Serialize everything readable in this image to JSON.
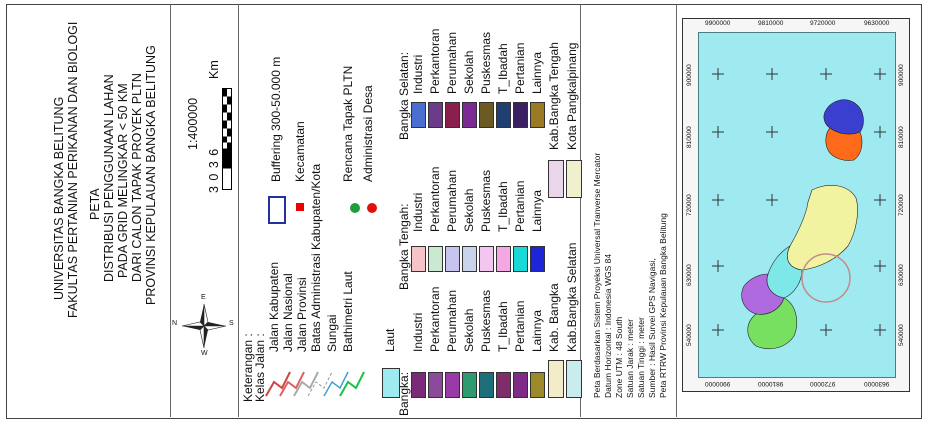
{
  "title_block": {
    "institution": [
      "UNIVERSITAS BANGKA BELITUNG",
      "FAKULTAS PERTANIAN PERIKANAN DAN BIOLOGI"
    ],
    "map_title": [
      "PETA",
      "DISTRIBUSI PENGGUNAAN LAHAN",
      "PADA  GRID MELINGKAR < 50 KM",
      "DARI CALON TAPAK PROYEK PLTN",
      "PROVINSI KEPULAUAN BANGKA BELITUNG"
    ]
  },
  "scale": {
    "ratio": "1:400000",
    "numbers": "3   0   3   6",
    "unit": "Km"
  },
  "legend": {
    "title": "Keterangan :",
    "roads_title": "Kelas Jalan :",
    "roads": [
      "Jalan Kabupaten",
      "Jalan Nasional",
      "Jalan Provinsi"
    ],
    "boundary_kab": "Batas Administrasi Kabupaten/Kota",
    "river": "Sungai",
    "bathymetry": "Bathimetri Laut",
    "sea": "Laut",
    "buffer": "Buffering 300-50.000 m",
    "kecamatan": "Kecamatan",
    "pltn_site": "Rencana Tapak PLTN",
    "admin_desa": "Administrasi Desa",
    "bangka": {
      "title": "Bangka:",
      "items": [
        "Industri",
        "Perkantoran",
        "Perumahan",
        "Sekolah",
        "Puskesmas",
        "T_Ibadah",
        "Pertanian",
        "Lainnya"
      ],
      "colors": [
        "#7b2a78",
        "#8c4a9b",
        "#9a3aa8",
        "#2e9a6f",
        "#1e6d78",
        "#7e2d6a",
        "#7f2c86",
        "#9c8a2a"
      ]
    },
    "bangka_tengah": {
      "title": "Bangka Tengah:",
      "items": [
        "Industri",
        "Perkantoran",
        "Perumahan",
        "Sekolah",
        "Puskesmas",
        "T_Ibadah",
        "Pertanian",
        "Lainnya"
      ],
      "colors": [
        "#f6c4c8",
        "#c9ead0",
        "#c7c4ef",
        "#c9d4ea",
        "#f2c6ee",
        "#f5a7e3",
        "#19d8d8",
        "#1c25d8"
      ]
    },
    "bangka_selatan": {
      "title": "Bangka Selatan:",
      "items": [
        "Industri",
        "Perkantoran",
        "Perumahan",
        "Sekolah",
        "Puskesmas",
        "T_Ibadah",
        "Pertanian",
        "Lainnya"
      ],
      "colors": [
        "#4a6fd0",
        "#6a3c8a",
        "#8a1f4e",
        "#7a2a92",
        "#6b5a24",
        "#1f3e72",
        "#3a1f62",
        "#9b7a24"
      ]
    },
    "kab_bangka": "Kab. Bangka",
    "kab_bangka_selatan": "Kab.Bangka Selatan",
    "kab_bangka_tengah": "Kab.Bangka Tengah",
    "kota_pangkalpinang": "Kota Pangkalpinang",
    "kab_colors": [
      "#f2ecc8",
      "#c9ecec",
      "#ead6ea",
      "#f0f0cf"
    ]
  },
  "notes": [
    "Peta Berdasarkan Sistem Proyeksi Universal Tranverse Mercator",
    "Datum Horizontal : Indonesia WGS 84",
    "Zone UTM : 48 South",
    "Satuan Jarak : meter",
    "Satuan Tinggi : meter",
    "Sumber : Hasil Survei GPS Navigasi,",
    "Peta RTRW Provinsi Kepulauan Bangka Belitung"
  ],
  "grid_labels": {
    "top": [
      "9900000",
      "9810000",
      "9720000",
      "9630000"
    ],
    "bottom": [
      "9900000",
      "9810000",
      "9720000",
      "9630000"
    ],
    "left": [
      "540000",
      "630000",
      "720000",
      "810000",
      "900000"
    ],
    "right": [
      "540000",
      "630000",
      "720000",
      "810000",
      "900000"
    ]
  },
  "compass": {
    "n": "N",
    "s": "S",
    "e": "E",
    "w": "W"
  },
  "colors": {
    "sea": "#9fe9f1",
    "buffer_circle": "#c48a8a"
  }
}
